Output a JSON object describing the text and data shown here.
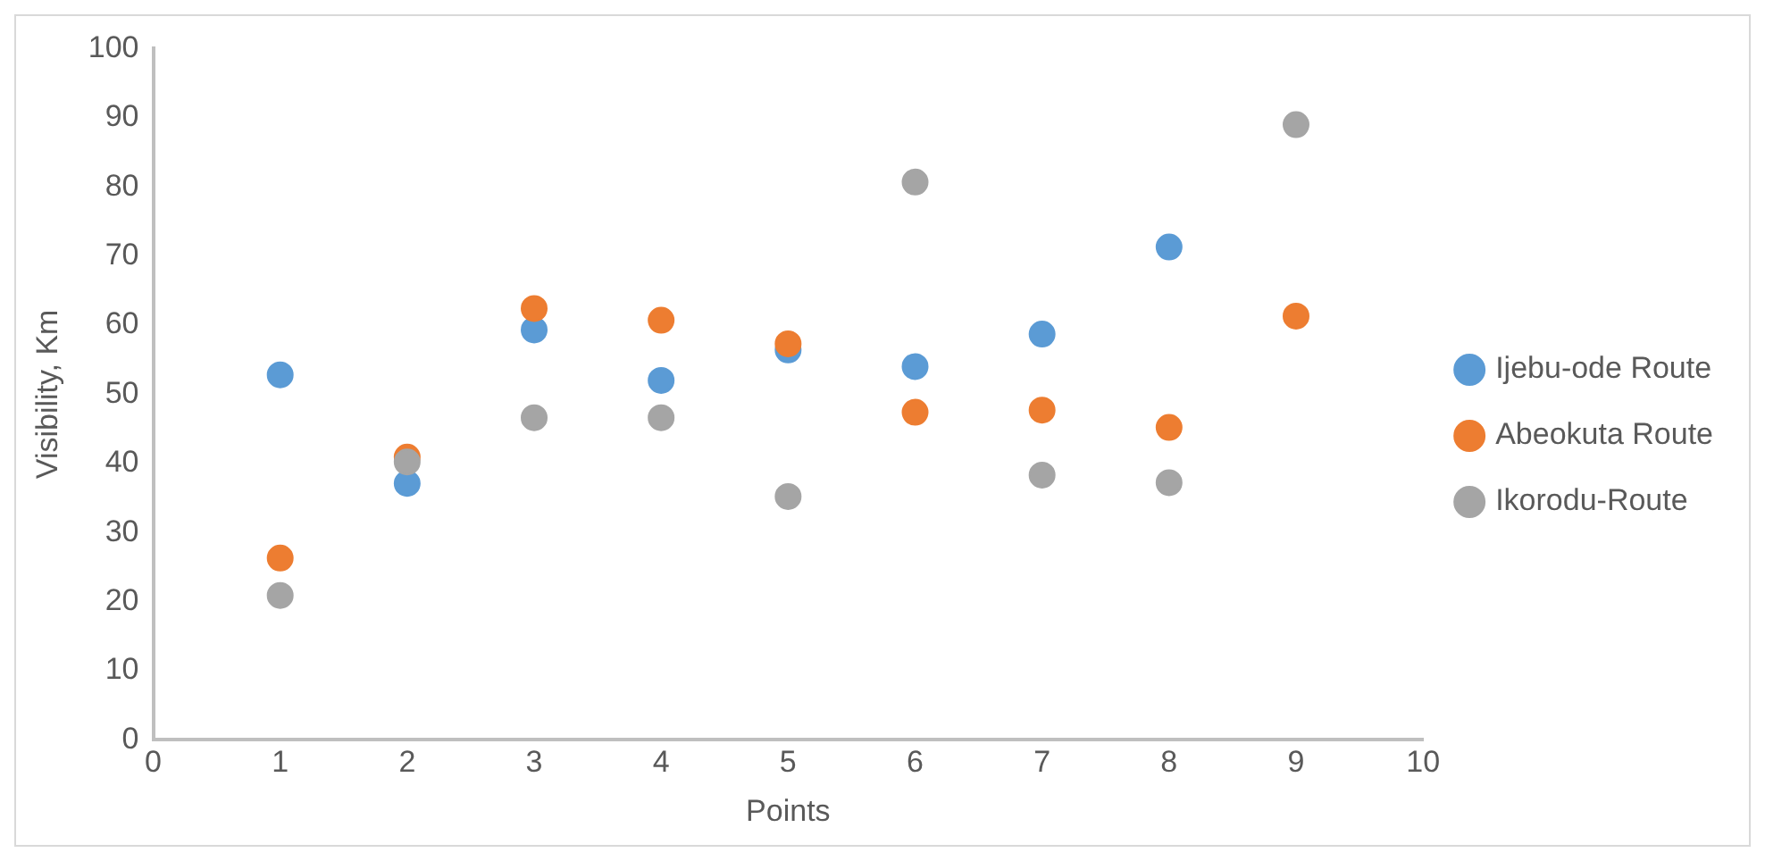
{
  "chart_data": {
    "type": "scatter",
    "xlabel": "Points",
    "ylabel": "Visibility, Km",
    "x": [
      1,
      2,
      3,
      4,
      5,
      6,
      7,
      8,
      9
    ],
    "series": [
      {
        "name": "Ijebu-ode Route",
        "color": "#5b9bd5",
        "values": [
          52.8,
          37.1,
          59.3,
          52.0,
          56.4,
          54.0,
          58.7,
          71.3,
          null
        ]
      },
      {
        "name": "Abeokuta Route",
        "color": "#ed7d31",
        "values": [
          26.3,
          40.9,
          62.4,
          60.7,
          57.3,
          47.4,
          47.7,
          45.2,
          61.3
        ]
      },
      {
        "name": "Ikorodu-Route",
        "color": "#a5a5a5",
        "values": [
          20.9,
          40.2,
          46.6,
          46.6,
          35.2,
          80.7,
          38.3,
          37.2,
          89.0
        ]
      }
    ],
    "xlim": [
      0,
      10
    ],
    "xticks": [
      0,
      1,
      2,
      3,
      4,
      5,
      6,
      7,
      8,
      9,
      10
    ],
    "ylim": [
      0,
      100
    ],
    "yticks": [
      0,
      10,
      20,
      30,
      40,
      50,
      60,
      70,
      80,
      90,
      100
    ],
    "grid": false,
    "legend": "right",
    "marker": "circle"
  }
}
